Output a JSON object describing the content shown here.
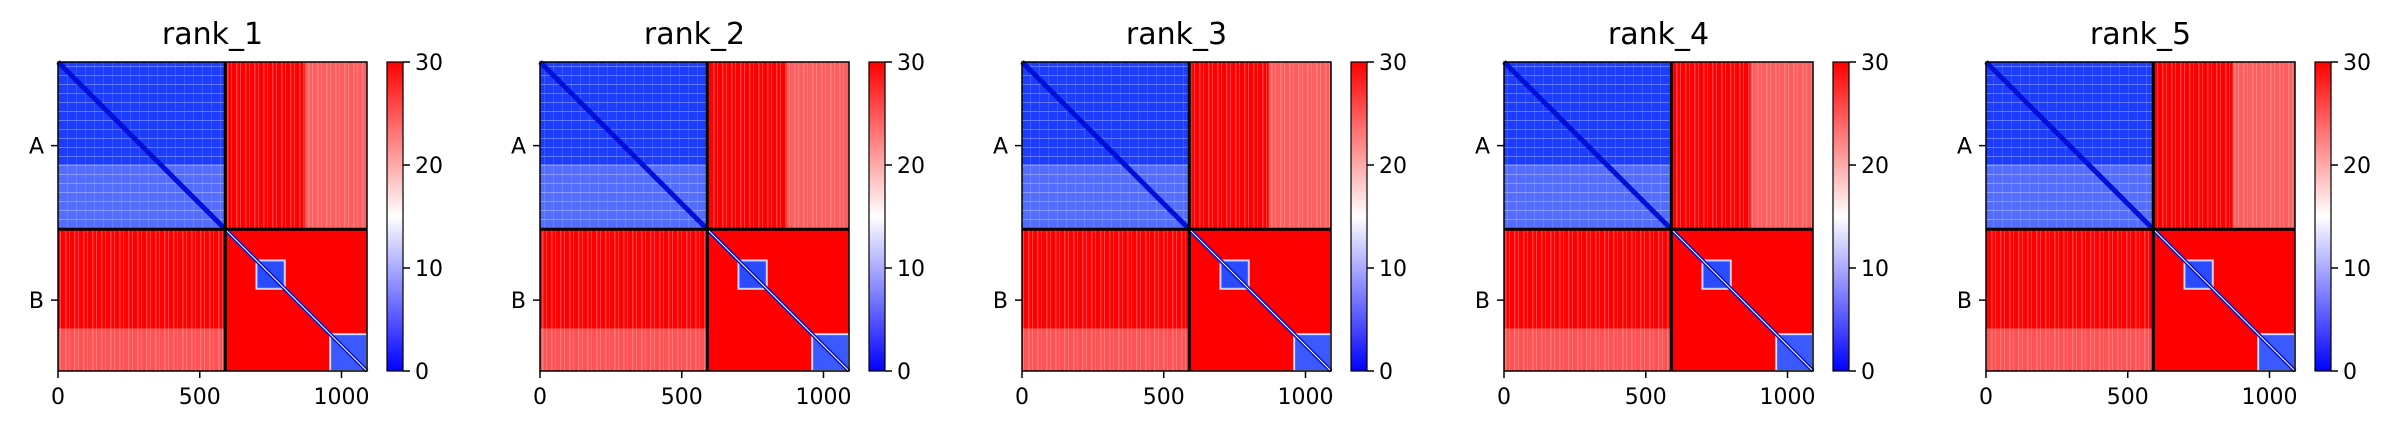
{
  "figure": {
    "colorbar": {
      "ticks": [
        "0",
        "10",
        "20",
        "30"
      ],
      "vmin": 0,
      "vmax": 30,
      "colormap": [
        "#0000ff",
        "#ffffff",
        "#ff0000"
      ]
    }
  },
  "chart_data": [
    {
      "type": "heatmap",
      "title": "rank_1",
      "x_ticks": [
        "0",
        "500",
        "1000"
      ],
      "y_ticks": [
        "A",
        "B"
      ],
      "chains": [
        {
          "name": "A",
          "start": 0,
          "end": 590
        },
        {
          "name": "B",
          "start": 590,
          "end": 1090
        }
      ],
      "xlim": [
        0,
        1090
      ],
      "ylim": [
        1090,
        0
      ],
      "clim": [
        0,
        30
      ]
    },
    {
      "type": "heatmap",
      "title": "rank_2",
      "x_ticks": [
        "0",
        "500",
        "1000"
      ],
      "y_ticks": [
        "A",
        "B"
      ],
      "chains": [
        {
          "name": "A",
          "start": 0,
          "end": 590
        },
        {
          "name": "B",
          "start": 590,
          "end": 1090
        }
      ],
      "xlim": [
        0,
        1090
      ],
      "ylim": [
        1090,
        0
      ],
      "clim": [
        0,
        30
      ]
    },
    {
      "type": "heatmap",
      "title": "rank_3",
      "x_ticks": [
        "0",
        "500",
        "1000"
      ],
      "y_ticks": [
        "A",
        "B"
      ],
      "chains": [
        {
          "name": "A",
          "start": 0,
          "end": 590
        },
        {
          "name": "B",
          "start": 590,
          "end": 1090
        }
      ],
      "xlim": [
        0,
        1090
      ],
      "ylim": [
        1090,
        0
      ],
      "clim": [
        0,
        30
      ]
    },
    {
      "type": "heatmap",
      "title": "rank_4",
      "x_ticks": [
        "0",
        "500",
        "1000"
      ],
      "y_ticks": [
        "A",
        "B"
      ],
      "chains": [
        {
          "name": "A",
          "start": 0,
          "end": 590
        },
        {
          "name": "B",
          "start": 590,
          "end": 1090
        }
      ],
      "xlim": [
        0,
        1090
      ],
      "ylim": [
        1090,
        0
      ],
      "clim": [
        0,
        30
      ]
    },
    {
      "type": "heatmap",
      "title": "rank_5",
      "x_ticks": [
        "0",
        "500",
        "1000"
      ],
      "y_ticks": [
        "A",
        "B"
      ],
      "chains": [
        {
          "name": "A",
          "start": 0,
          "end": 590
        },
        {
          "name": "B",
          "start": 590,
          "end": 1090
        }
      ],
      "xlim": [
        0,
        1090
      ],
      "ylim": [
        1090,
        0
      ],
      "clim": [
        0,
        30
      ]
    }
  ]
}
